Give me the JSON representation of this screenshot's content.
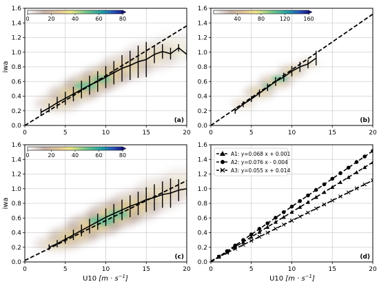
{
  "chart_data": [
    {
      "panel": "(a)",
      "type": "heatmap",
      "colorbar": {
        "ticks": [
          "0",
          "20",
          "40",
          "60",
          "80"
        ],
        "max": 80
      },
      "fit_line": [
        [
          0,
          0.0
        ],
        [
          20,
          1.36
        ]
      ],
      "density": [
        {
          "u": 4,
          "w": 0.3,
          "su": 2.2,
          "sw": 0.09,
          "a": 0.5
        },
        {
          "u": 6,
          "w": 0.44,
          "su": 2.4,
          "sw": 0.1,
          "a": 0.75
        },
        {
          "u": 8,
          "w": 0.56,
          "su": 2.4,
          "sw": 0.11,
          "a": 0.85
        },
        {
          "u": 10,
          "w": 0.67,
          "su": 2.3,
          "sw": 0.12,
          "a": 0.75
        },
        {
          "u": 12.5,
          "w": 0.8,
          "su": 2.5,
          "sw": 0.14,
          "a": 0.55
        },
        {
          "u": 15.5,
          "w": 0.95,
          "su": 2.6,
          "sw": 0.16,
          "a": 0.35
        },
        {
          "u": 18.5,
          "w": 1.05,
          "su": 2.2,
          "sw": 0.17,
          "a": 0.2
        }
      ],
      "core": [
        {
          "u": 7.5,
          "w": 0.54,
          "su": 1.4,
          "sw": 0.05,
          "a": 0.7
        },
        {
          "u": 9.5,
          "w": 0.63,
          "su": 1.2,
          "sw": 0.05,
          "a": 0.6
        }
      ],
      "mean": {
        "x": [
          2,
          3,
          4,
          5,
          6,
          7,
          8,
          9,
          10,
          11,
          12,
          13,
          14,
          15,
          16,
          17,
          18,
          19,
          20
        ],
        "y": [
          0.18,
          0.24,
          0.31,
          0.37,
          0.43,
          0.49,
          0.55,
          0.6,
          0.66,
          0.72,
          0.78,
          0.82,
          0.87,
          0.9,
          0.97,
          1.01,
          0.98,
          1.06,
          0.97
        ],
        "err": [
          0.05,
          0.06,
          0.08,
          0.09,
          0.1,
          0.12,
          0.13,
          0.14,
          0.15,
          0.16,
          0.18,
          0.2,
          0.22,
          0.24,
          0.12,
          0.1,
          0.08,
          0.05,
          0.07
        ]
      }
    },
    {
      "panel": "(b)",
      "type": "heatmap",
      "colorbar": {
        "ticks": [
          "40",
          "80",
          "120",
          "160"
        ],
        "max": 160
      },
      "fit_line": [
        [
          0,
          0.0
        ],
        [
          20,
          1.52
        ]
      ],
      "density": [
        {
          "u": 4,
          "w": 0.3,
          "su": 1.2,
          "sw": 0.05,
          "a": 0.45
        },
        {
          "u": 6,
          "w": 0.46,
          "su": 1.5,
          "sw": 0.07,
          "a": 0.7
        },
        {
          "u": 8,
          "w": 0.6,
          "su": 1.6,
          "sw": 0.07,
          "a": 0.8
        },
        {
          "u": 10,
          "w": 0.74,
          "su": 1.3,
          "sw": 0.07,
          "a": 0.7
        },
        {
          "u": 12,
          "w": 0.85,
          "su": 1.0,
          "sw": 0.06,
          "a": 0.4
        }
      ],
      "core": [
        {
          "u": 8.5,
          "w": 0.64,
          "su": 1.0,
          "sw": 0.035,
          "a": 0.75
        },
        {
          "u": 7.0,
          "w": 0.54,
          "su": 0.7,
          "sw": 0.03,
          "a": 0.5
        }
      ],
      "mean": {
        "x": [
          3,
          4,
          5,
          6,
          7,
          8,
          9,
          10,
          11,
          12,
          13
        ],
        "y": [
          0.2,
          0.29,
          0.36,
          0.44,
          0.52,
          0.6,
          0.66,
          0.74,
          0.8,
          0.84,
          0.92
        ],
        "err": [
          0.04,
          0.04,
          0.04,
          0.05,
          0.05,
          0.06,
          0.06,
          0.07,
          0.07,
          0.06,
          0.1
        ]
      }
    },
    {
      "panel": "(c)",
      "type": "heatmap",
      "colorbar": {
        "ticks": [
          "0",
          "20",
          "40",
          "60",
          "80"
        ],
        "max": 80
      },
      "fit_line": [
        [
          0,
          0.02
        ],
        [
          20,
          1.11
        ]
      ],
      "density": [
        {
          "u": 4,
          "w": 0.25,
          "su": 2.2,
          "sw": 0.08,
          "a": 0.5
        },
        {
          "u": 6,
          "w": 0.36,
          "su": 2.4,
          "sw": 0.1,
          "a": 0.75
        },
        {
          "u": 8.5,
          "w": 0.5,
          "su": 2.6,
          "sw": 0.12,
          "a": 0.85
        },
        {
          "u": 11,
          "w": 0.64,
          "su": 2.6,
          "sw": 0.14,
          "a": 0.85
        },
        {
          "u": 13.5,
          "w": 0.76,
          "su": 2.6,
          "sw": 0.16,
          "a": 0.65
        },
        {
          "u": 16.5,
          "w": 0.92,
          "su": 2.4,
          "sw": 0.18,
          "a": 0.4
        },
        {
          "u": 19,
          "w": 1.05,
          "su": 1.8,
          "sw": 0.18,
          "a": 0.25
        }
      ],
      "core": [
        {
          "u": 9.5,
          "w": 0.56,
          "su": 1.6,
          "sw": 0.06,
          "a": 0.75
        },
        {
          "u": 11.5,
          "w": 0.65,
          "su": 1.3,
          "sw": 0.06,
          "a": 0.65
        }
      ],
      "mean": {
        "x": [
          3,
          4,
          5,
          6,
          7,
          8,
          9,
          10,
          11,
          12,
          13,
          14,
          15,
          16,
          17,
          18,
          19,
          20
        ],
        "y": [
          0.2,
          0.25,
          0.31,
          0.37,
          0.43,
          0.49,
          0.55,
          0.61,
          0.66,
          0.71,
          0.76,
          0.8,
          0.85,
          0.88,
          0.92,
          0.94,
          0.98,
          1.0
        ],
        "err": [
          0.04,
          0.05,
          0.06,
          0.07,
          0.08,
          0.1,
          0.11,
          0.12,
          0.13,
          0.14,
          0.15,
          0.16,
          0.17,
          0.18,
          0.18,
          0.2,
          0.15,
          0.1
        ]
      }
    },
    {
      "panel": "(d)",
      "type": "line",
      "legend_position": "top-left",
      "series": [
        {
          "name": "A1: y=0.068 x + 0.001",
          "marker": "triangle",
          "slope": 0.068,
          "intercept": 0.001
        },
        {
          "name": "A2: y=0.076 x - 0.004",
          "marker": "circle",
          "slope": 0.076,
          "intercept": -0.004
        },
        {
          "name": "A3: y=0.055 x + 0.014",
          "marker": "x",
          "slope": 0.055,
          "intercept": 0.014
        }
      ],
      "marker_x": [
        1,
        2,
        3,
        4,
        5,
        6,
        7,
        8,
        9,
        10,
        11,
        12,
        13,
        14,
        15,
        16,
        17,
        18,
        19,
        20
      ]
    }
  ],
  "axes": {
    "xlabel": "U10 [m·s⁻¹]",
    "ylabel": "iwa",
    "xlim": [
      0,
      20
    ],
    "ylim": [
      0,
      1.6
    ],
    "xticks": [
      "0",
      "5",
      "10",
      "15",
      "20"
    ],
    "yticks": [
      "0.0",
      "0.2",
      "0.4",
      "0.6",
      "0.8",
      "1.0",
      "1.2",
      "1.4",
      "1.6"
    ],
    "grid": true
  }
}
